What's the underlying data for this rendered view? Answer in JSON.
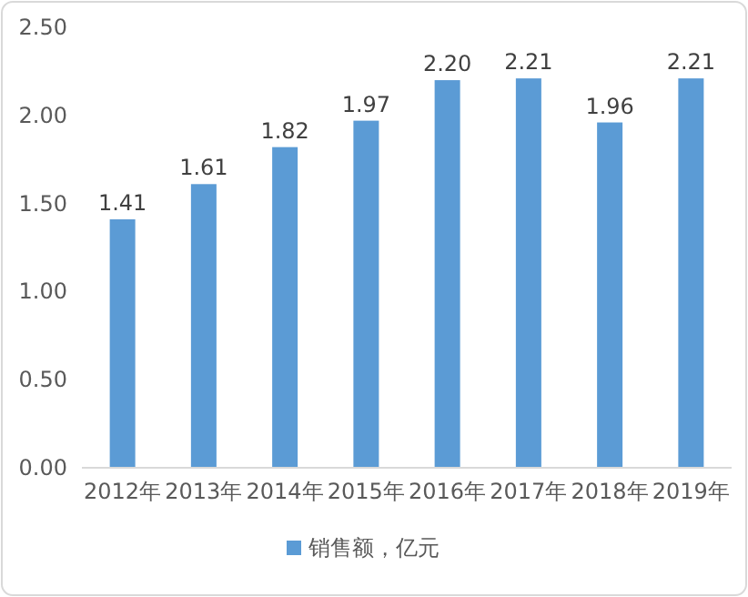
{
  "chart_data": {
    "type": "bar",
    "categories": [
      "2012年",
      "2013年",
      "2014年",
      "2015年",
      "2016年",
      "2017年",
      "2018年",
      "2019年"
    ],
    "series": [
      {
        "name": "销售额，亿元",
        "color": "#5b9bd5",
        "values": [
          1.41,
          1.61,
          1.82,
          1.97,
          2.2,
          2.21,
          1.96,
          2.21
        ],
        "value_labels": [
          "1.41",
          "1.61",
          "1.82",
          "1.97",
          "2.20",
          "2.21",
          "1.96",
          "2.21"
        ]
      }
    ],
    "ylim": [
      0,
      2.5
    ],
    "yticks": [
      {
        "value": 0,
        "label": "0.00"
      },
      {
        "value": 0.5,
        "label": "0.50"
      },
      {
        "value": 1,
        "label": "1.00"
      },
      {
        "value": 1.5,
        "label": "1.50"
      },
      {
        "value": 2,
        "label": "2.00"
      },
      {
        "value": 2.5,
        "label": "2.50"
      }
    ],
    "grid": false,
    "legend": "bottom"
  }
}
